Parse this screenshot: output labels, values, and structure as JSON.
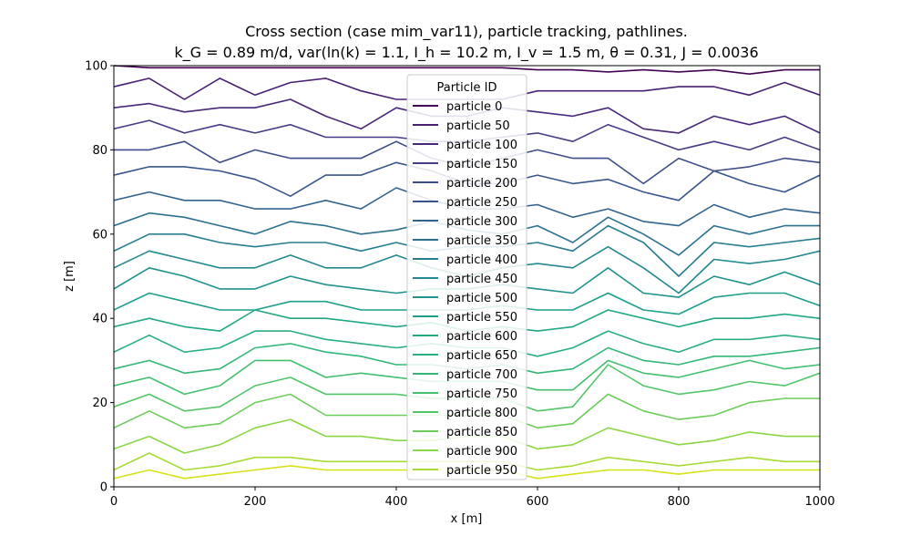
{
  "chart_data": {
    "type": "line",
    "title": "Cross section (case mim_var11), particle tracking, pathlines.",
    "subtitle": "k_G = 0.89 m/d, var(ln(k) = 1.1, I_h = 10.2 m, I_v = 1.5 m, θ = 0.31, J = 0.0036",
    "xlabel": "x [m]",
    "ylabel": "z [m]",
    "xlim": [
      0,
      1000
    ],
    "ylim": [
      0,
      100
    ],
    "xticks": [
      "0",
      "200",
      "400",
      "600",
      "800",
      "1000"
    ],
    "yticks": [
      "0",
      "20",
      "40",
      "60",
      "80",
      "100"
    ],
    "grid": false,
    "legend": {
      "title": "Particle ID",
      "placement": "upper-center"
    },
    "x": [
      0,
      50,
      100,
      150,
      200,
      250,
      300,
      350,
      400,
      450,
      500,
      550,
      600,
      650,
      700,
      750,
      800,
      850,
      900,
      950,
      1000
    ],
    "series": [
      {
        "name": "particle 0",
        "color": "#440154",
        "values": [
          100,
          99.5,
          99.5,
          99.5,
          99.5,
          99.5,
          99.5,
          99.5,
          99.5,
          99.5,
          99.5,
          99.5,
          99,
          99,
          98.5,
          99,
          98.5,
          99,
          98,
          99,
          99
        ]
      },
      {
        "name": "particle 50",
        "color": "#482173",
        "values": [
          95,
          97,
          92,
          97,
          93,
          96,
          97,
          94,
          92,
          92,
          92,
          92,
          94,
          94,
          94,
          94,
          95,
          95,
          93,
          96,
          93
        ]
      },
      {
        "name": "particle 100",
        "color": "#482878",
        "values": [
          90,
          91,
          89,
          90,
          90,
          92,
          88,
          85,
          90,
          88,
          88,
          90,
          89,
          88,
          90,
          85,
          84,
          88,
          86,
          88,
          84
        ]
      },
      {
        "name": "particle 150",
        "color": "#433e85",
        "values": [
          85,
          87,
          84,
          86,
          84,
          86,
          83,
          83,
          83,
          82,
          82,
          83,
          84,
          82,
          86,
          83,
          80,
          82,
          80,
          83,
          80
        ]
      },
      {
        "name": "particle 200",
        "color": "#3e4c8a",
        "values": [
          80,
          80,
          82,
          77,
          80,
          78,
          78,
          78,
          82,
          78,
          76,
          78,
          80,
          78,
          78,
          72,
          78,
          75,
          76,
          78,
          77
        ]
      },
      {
        "name": "particle 250",
        "color": "#39568c",
        "values": [
          74,
          76,
          76,
          75,
          73,
          69,
          74,
          74,
          77,
          75,
          72,
          72,
          74,
          72,
          73,
          70,
          68,
          75,
          72,
          70,
          74
        ]
      },
      {
        "name": "particle 300",
        "color": "#33638d",
        "values": [
          68,
          70,
          68,
          68,
          66,
          66,
          68,
          66,
          71,
          68,
          66,
          66,
          67,
          64,
          66,
          63,
          62,
          67,
          64,
          66,
          65
        ]
      },
      {
        "name": "particle 350",
        "color": "#2d708e",
        "values": [
          62,
          65,
          64,
          62,
          60,
          63,
          62,
          60,
          61,
          63,
          61,
          60,
          62,
          58,
          64,
          60,
          55,
          62,
          60,
          62,
          62
        ]
      },
      {
        "name": "particle 400",
        "color": "#287d8e",
        "values": [
          56,
          60,
          60,
          58,
          57,
          58,
          58,
          56,
          58,
          56,
          57,
          57,
          58,
          56,
          62,
          58,
          50,
          58,
          57,
          58,
          59
        ]
      },
      {
        "name": "particle 450",
        "color": "#23898e",
        "values": [
          52,
          56,
          54,
          52,
          52,
          55,
          52,
          52,
          55,
          52,
          50,
          52,
          53,
          52,
          57,
          52,
          46,
          54,
          53,
          54,
          56
        ]
      },
      {
        "name": "particle 500",
        "color": "#20928c",
        "values": [
          47,
          52,
          50,
          47,
          47,
          50,
          48,
          47,
          46,
          47,
          47,
          48,
          47,
          46,
          52,
          46,
          45,
          50,
          48,
          51,
          48
        ]
      },
      {
        "name": "particle 550",
        "color": "#1f9e89",
        "values": [
          42,
          46,
          44,
          42,
          42,
          44,
          44,
          42,
          42,
          42,
          42,
          43,
          42,
          42,
          46,
          42,
          41,
          45,
          46,
          46,
          43
        ]
      },
      {
        "name": "particle 600",
        "color": "#22a884",
        "values": [
          38,
          40,
          38,
          37,
          42,
          40,
          40,
          39,
          38,
          39,
          37,
          38,
          37,
          38,
          42,
          40,
          38,
          40,
          40,
          41,
          40
        ]
      },
      {
        "name": "particle 650",
        "color": "#2ab07f",
        "values": [
          32,
          36,
          32,
          33,
          37,
          37,
          35,
          34,
          33,
          34,
          33,
          33,
          31,
          33,
          37,
          34,
          32,
          35,
          35,
          36,
          35
        ]
      },
      {
        "name": "particle 700",
        "color": "#35b779",
        "values": [
          28,
          30,
          27,
          28,
          33,
          34,
          32,
          31,
          29,
          29,
          28,
          29,
          27,
          28,
          33,
          30,
          29,
          31,
          31,
          32,
          33
        ]
      },
      {
        "name": "particle 750",
        "color": "#44bf70",
        "values": [
          24,
          26,
          22,
          24,
          30,
          30,
          26,
          27,
          26,
          25,
          25,
          25,
          23,
          23,
          30,
          27,
          26,
          28,
          30,
          28,
          29
        ]
      },
      {
        "name": "particle 800",
        "color": "#54c568",
        "values": [
          19,
          22,
          18,
          19,
          24,
          26,
          22,
          22,
          22,
          21,
          21,
          21,
          18,
          19,
          29,
          24,
          22,
          23,
          25,
          24,
          27
        ]
      },
      {
        "name": "particle 850",
        "color": "#6ccd5a",
        "values": [
          14,
          18,
          14,
          15,
          20,
          22,
          17,
          17,
          17,
          17,
          17,
          17,
          14,
          15,
          22,
          18,
          16,
          17,
          20,
          21,
          21
        ]
      },
      {
        "name": "particle 900",
        "color": "#8bd646",
        "values": [
          9,
          12,
          8,
          10,
          14,
          16,
          12,
          12,
          11,
          11,
          12,
          12,
          9,
          10,
          14,
          12,
          10,
          11,
          13,
          12,
          12
        ]
      },
      {
        "name": "particle 950",
        "color": "#a8db34",
        "values": [
          4,
          8,
          4,
          5,
          7,
          7,
          6,
          6,
          6,
          6,
          6,
          6,
          4,
          5,
          7,
          6,
          5,
          6,
          7,
          6,
          6
        ]
      },
      {
        "name": "",
        "color": "#d5e21a",
        "values": [
          2,
          4,
          2,
          3,
          4,
          5,
          4,
          4,
          4,
          4,
          4,
          4,
          2,
          3,
          4,
          4,
          3,
          4,
          4,
          4,
          4
        ]
      }
    ]
  }
}
